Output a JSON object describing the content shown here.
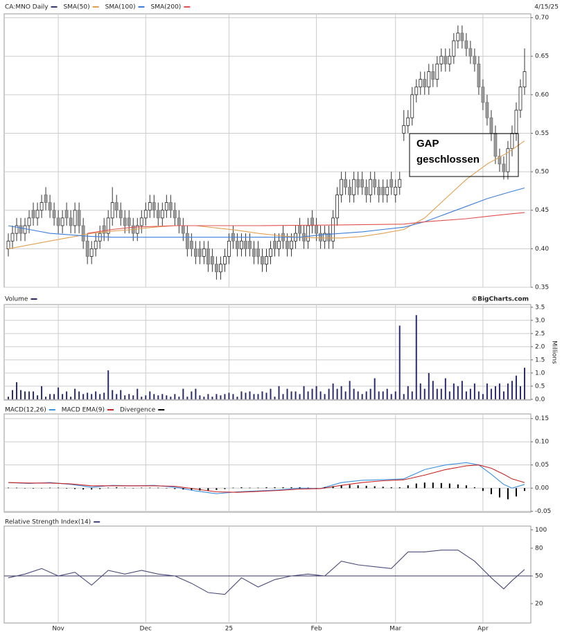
{
  "chart_data": [
    {
      "type": "candlestick",
      "name": "CA:MNO Daily",
      "color": "#333a6e",
      "date": "4/15/25",
      "up_color": "#ffffff",
      "down_color": "#9a9a9a",
      "grid": true,
      "ylim": [
        0.35,
        0.705
      ],
      "yticks": [
        0.35,
        {
          "value": 0.4,
          "label": "0.40"
        },
        0.45,
        {
          "value": 0.5,
          "label": "0.50"
        },
        0.55,
        {
          "value": 0.6,
          "label": "0.60"
        },
        0.65,
        {
          "value": 0.7,
          "label": "0.70"
        }
      ],
      "annotation": [
        "GAP",
        "geschlossen"
      ],
      "open": [
        0.4,
        0.41,
        0.42,
        0.43,
        0.42,
        0.43,
        0.45,
        0.44,
        0.45,
        0.47,
        0.46,
        0.45,
        0.44,
        0.43,
        0.45,
        0.44,
        0.43,
        0.45,
        0.43,
        0.41,
        0.39,
        0.4,
        0.41,
        0.43,
        0.42,
        0.44,
        0.46,
        0.45,
        0.44,
        0.44,
        0.43,
        0.42,
        0.43,
        0.44,
        0.45,
        0.46,
        0.45,
        0.44,
        0.45,
        0.46,
        0.45,
        0.44,
        0.43,
        0.42,
        0.41,
        0.4,
        0.4,
        0.39,
        0.4,
        0.39,
        0.38,
        0.37,
        0.38,
        0.39,
        0.42,
        0.41,
        0.4,
        0.41,
        0.41,
        0.4,
        0.4,
        0.39,
        0.38,
        0.39,
        0.41,
        0.4,
        0.42,
        0.41,
        0.4,
        0.41,
        0.43,
        0.42,
        0.41,
        0.44,
        0.43,
        0.42,
        0.41,
        0.42,
        0.41,
        0.44,
        0.47,
        0.49,
        0.48,
        0.47,
        0.49,
        0.49,
        0.48,
        0.47,
        0.49,
        0.48,
        0.48,
        0.47,
        0.49,
        0.47,
        0.48,
        0.55,
        0.56,
        0.57,
        0.6,
        0.61,
        0.62,
        0.61,
        0.63,
        0.62,
        0.64,
        0.65,
        0.64,
        0.65,
        0.67,
        0.68,
        0.67,
        0.66,
        0.65,
        0.64,
        0.61,
        0.59,
        0.57,
        0.55,
        0.52,
        0.51,
        0.5,
        0.53,
        0.55,
        0.58,
        0.61
      ],
      "high": [
        0.42,
        0.43,
        0.44,
        0.44,
        0.44,
        0.45,
        0.46,
        0.46,
        0.47,
        0.48,
        0.47,
        0.46,
        0.45,
        0.45,
        0.46,
        0.45,
        0.46,
        0.46,
        0.44,
        0.42,
        0.41,
        0.42,
        0.43,
        0.44,
        0.45,
        0.48,
        0.47,
        0.46,
        0.45,
        0.45,
        0.44,
        0.44,
        0.45,
        0.46,
        0.47,
        0.47,
        0.46,
        0.46,
        0.47,
        0.47,
        0.46,
        0.45,
        0.44,
        0.43,
        0.42,
        0.41,
        0.41,
        0.41,
        0.41,
        0.4,
        0.39,
        0.39,
        0.4,
        0.42,
        0.43,
        0.42,
        0.42,
        0.42,
        0.42,
        0.41,
        0.41,
        0.4,
        0.4,
        0.41,
        0.42,
        0.42,
        0.43,
        0.42,
        0.42,
        0.43,
        0.44,
        0.43,
        0.44,
        0.45,
        0.44,
        0.43,
        0.43,
        0.43,
        0.45,
        0.48,
        0.5,
        0.5,
        0.49,
        0.5,
        0.5,
        0.5,
        0.49,
        0.5,
        0.5,
        0.49,
        0.49,
        0.49,
        0.5,
        0.49,
        0.5,
        0.58,
        0.58,
        0.61,
        0.62,
        0.63,
        0.63,
        0.64,
        0.64,
        0.65,
        0.66,
        0.66,
        0.66,
        0.68,
        0.69,
        0.69,
        0.68,
        0.67,
        0.66,
        0.65,
        0.62,
        0.6,
        0.58,
        0.56,
        0.53,
        0.52,
        0.54,
        0.56,
        0.59,
        0.62,
        0.66
      ],
      "low": [
        0.39,
        0.4,
        0.41,
        0.41,
        0.41,
        0.42,
        0.43,
        0.43,
        0.44,
        0.45,
        0.44,
        0.43,
        0.42,
        0.42,
        0.43,
        0.42,
        0.42,
        0.42,
        0.4,
        0.38,
        0.38,
        0.39,
        0.4,
        0.41,
        0.41,
        0.43,
        0.44,
        0.43,
        0.42,
        0.42,
        0.41,
        0.41,
        0.42,
        0.43,
        0.44,
        0.44,
        0.43,
        0.43,
        0.44,
        0.44,
        0.43,
        0.42,
        0.41,
        0.39,
        0.39,
        0.38,
        0.38,
        0.38,
        0.37,
        0.37,
        0.36,
        0.36,
        0.37,
        0.38,
        0.4,
        0.39,
        0.39,
        0.39,
        0.39,
        0.38,
        0.38,
        0.37,
        0.37,
        0.38,
        0.39,
        0.39,
        0.4,
        0.39,
        0.39,
        0.4,
        0.41,
        0.4,
        0.4,
        0.42,
        0.41,
        0.4,
        0.4,
        0.4,
        0.4,
        0.43,
        0.46,
        0.47,
        0.46,
        0.46,
        0.47,
        0.47,
        0.46,
        0.46,
        0.47,
        0.46,
        0.46,
        0.46,
        0.47,
        0.46,
        0.47,
        0.54,
        0.55,
        0.56,
        0.59,
        0.6,
        0.6,
        0.6,
        0.61,
        0.61,
        0.63,
        0.63,
        0.63,
        0.64,
        0.66,
        0.66,
        0.65,
        0.64,
        0.63,
        0.6,
        0.58,
        0.56,
        0.54,
        0.51,
        0.5,
        0.49,
        0.49,
        0.52,
        0.54,
        0.57,
        0.6
      ],
      "close": [
        0.41,
        0.42,
        0.43,
        0.42,
        0.43,
        0.44,
        0.44,
        0.45,
        0.46,
        0.46,
        0.45,
        0.44,
        0.43,
        0.44,
        0.44,
        0.43,
        0.45,
        0.43,
        0.41,
        0.39,
        0.4,
        0.41,
        0.42,
        0.42,
        0.44,
        0.46,
        0.45,
        0.44,
        0.43,
        0.43,
        0.42,
        0.43,
        0.44,
        0.45,
        0.46,
        0.45,
        0.44,
        0.45,
        0.46,
        0.45,
        0.44,
        0.43,
        0.42,
        0.4,
        0.4,
        0.39,
        0.39,
        0.4,
        0.38,
        0.38,
        0.37,
        0.38,
        0.39,
        0.41,
        0.41,
        0.4,
        0.41,
        0.4,
        0.4,
        0.39,
        0.39,
        0.38,
        0.39,
        0.4,
        0.4,
        0.41,
        0.41,
        0.4,
        0.41,
        0.42,
        0.42,
        0.41,
        0.43,
        0.43,
        0.42,
        0.41,
        0.42,
        0.41,
        0.44,
        0.47,
        0.49,
        0.48,
        0.47,
        0.49,
        0.48,
        0.48,
        0.47,
        0.49,
        0.48,
        0.47,
        0.47,
        0.48,
        0.48,
        0.48,
        0.49,
        0.56,
        0.57,
        0.6,
        0.61,
        0.62,
        0.61,
        0.63,
        0.62,
        0.64,
        0.65,
        0.64,
        0.65,
        0.67,
        0.68,
        0.67,
        0.66,
        0.65,
        0.64,
        0.61,
        0.59,
        0.57,
        0.55,
        0.52,
        0.51,
        0.5,
        0.53,
        0.55,
        0.58,
        0.61,
        0.63
      ],
      "series": [
        {
          "name": "SMA(50)",
          "color": "#e0a050",
          "x": [
            0,
            5,
            10,
            15,
            20,
            25,
            30,
            35,
            40,
            45,
            50,
            55,
            60,
            65,
            70,
            75,
            80,
            85,
            90,
            95,
            100,
            105,
            110,
            115,
            120,
            124
          ],
          "values": [
            0.4,
            0.405,
            0.41,
            0.415,
            0.42,
            0.423,
            0.425,
            0.428,
            0.43,
            0.43,
            0.427,
            0.424,
            0.42,
            0.417,
            0.415,
            0.414,
            0.414,
            0.416,
            0.42,
            0.425,
            0.44,
            0.465,
            0.49,
            0.51,
            0.525,
            0.54
          ]
        },
        {
          "name": "SMA(100)",
          "color": "#3b7ddd",
          "x": [
            0,
            5,
            10,
            15,
            20,
            25,
            30,
            35,
            40,
            45,
            50,
            55,
            60,
            65,
            70,
            75,
            80,
            85,
            90,
            95,
            100,
            105,
            110,
            115,
            120,
            124
          ],
          "values": [
            0.43,
            0.425,
            0.42,
            0.418,
            0.416,
            0.415,
            0.415,
            0.415,
            0.415,
            0.415,
            0.415,
            0.415,
            0.415,
            0.415,
            0.415,
            0.418,
            0.42,
            0.422,
            0.425,
            0.428,
            0.435,
            0.445,
            0.455,
            0.465,
            0.473,
            0.479
          ]
        },
        {
          "name": "SMA(200)",
          "color": "#e05050",
          "x": [
            19,
            25,
            30,
            40,
            60,
            80,
            95,
            100,
            110,
            115,
            120,
            124
          ],
          "values": [
            0.42,
            0.425,
            0.428,
            0.43,
            0.43,
            0.431,
            0.432,
            0.435,
            0.439,
            0.442,
            0.445,
            0.447
          ]
        }
      ]
    },
    {
      "type": "bar",
      "name": "Volume",
      "color": "#2b2b6b",
      "credit": "©BigCharts.com",
      "ylabel": "Millions",
      "grid": true,
      "ylim": [
        -0.03,
        3.6
      ],
      "yticks": [
        {
          "value": 0,
          "label": "0.0"
        },
        0.5,
        {
          "value": 1,
          "label": "1.0"
        },
        1.5,
        {
          "value": 2,
          "label": "2.0"
        },
        2.5,
        {
          "value": 3,
          "label": "3.0"
        },
        3.5
      ],
      "values": [
        0.1,
        0.35,
        0.65,
        0.35,
        0.3,
        0.3,
        0.3,
        0.15,
        0.5,
        0.1,
        0.2,
        0.2,
        0.45,
        0.2,
        0.3,
        0.1,
        0.4,
        0.3,
        0.2,
        0.25,
        0.2,
        0.3,
        0.2,
        0.25,
        1.1,
        0.35,
        0.2,
        0.35,
        0.15,
        0.2,
        0.15,
        0.4,
        0.1,
        0.15,
        0.3,
        0.2,
        0.15,
        0.2,
        0.15,
        0.1,
        0.2,
        0.1,
        0.4,
        0.1,
        0.3,
        0.4,
        0.15,
        0.1,
        0.2,
        0.1,
        0.2,
        0.15,
        0.2,
        0.25,
        0.2,
        0.1,
        0.3,
        0.25,
        0.3,
        0.2,
        0.2,
        0.3,
        0.25,
        0.4,
        0.1,
        0.5,
        0.2,
        0.4,
        0.3,
        0.3,
        0.2,
        0.5,
        0.3,
        0.4,
        0.5,
        0.3,
        0.2,
        0.4,
        0.6,
        0.4,
        0.5,
        0.3,
        0.7,
        0.4,
        0.3,
        0.2,
        0.3,
        0.4,
        0.8,
        0.3,
        0.3,
        0.4,
        0.2,
        0.3,
        2.8,
        0.2,
        0.5,
        0.3,
        3.2,
        0.6,
        0.4,
        1.0,
        0.7,
        0.4,
        0.4,
        0.8,
        0.3,
        0.6,
        0.5,
        0.7,
        0.3,
        0.4,
        0.6,
        0.3,
        0.2,
        0.6,
        0.4,
        0.5,
        0.6,
        0.3,
        0.6,
        0.7,
        0.9,
        0.5,
        1.2
      ]
    },
    {
      "type": "line",
      "grid": true,
      "ylim": [
        -0.052,
        0.16
      ],
      "yticks": [
        -0.05,
        {
          "value": 0,
          "label": "0.00"
        },
        0.05,
        {
          "value": 0.1,
          "label": "0.10"
        },
        0.15
      ],
      "series": [
        {
          "name": "MACD(12,26)",
          "color": "#3b8fe0",
          "x": [
            0,
            5,
            10,
            15,
            20,
            25,
            30,
            35,
            40,
            45,
            50,
            55,
            60,
            65,
            70,
            75,
            80,
            85,
            90,
            95,
            100,
            105,
            110,
            113,
            116,
            119,
            121,
            124
          ],
          "values": [
            0.012,
            0.01,
            0.012,
            0.008,
            0.002,
            0.006,
            0.005,
            0.006,
            0.002,
            -0.006,
            -0.012,
            -0.008,
            -0.006,
            -0.004,
            0.0,
            -0.001,
            0.012,
            0.017,
            0.018,
            0.02,
            0.04,
            0.05,
            0.055,
            0.05,
            0.03,
            0.008,
            0.0,
            0.008
          ]
        },
        {
          "name": "MACD EMA(9)",
          "color": "#cc2222",
          "x": [
            0,
            5,
            10,
            15,
            20,
            25,
            30,
            35,
            40,
            45,
            50,
            55,
            60,
            65,
            70,
            75,
            80,
            85,
            90,
            95,
            100,
            105,
            110,
            113,
            116,
            119,
            121,
            124
          ],
          "values": [
            0.012,
            0.011,
            0.011,
            0.009,
            0.005,
            0.005,
            0.005,
            0.005,
            0.004,
            -0.002,
            -0.008,
            -0.009,
            -0.007,
            -0.005,
            -0.002,
            -0.001,
            0.006,
            0.012,
            0.016,
            0.018,
            0.028,
            0.04,
            0.048,
            0.05,
            0.043,
            0.03,
            0.02,
            0.012
          ]
        },
        {
          "name": "Divergence",
          "color": "#000000",
          "kind": "bar",
          "x": [
            0,
            2,
            4,
            6,
            8,
            10,
            12,
            14,
            16,
            18,
            20,
            22,
            24,
            26,
            28,
            30,
            32,
            34,
            36,
            38,
            40,
            42,
            44,
            46,
            48,
            50,
            52,
            54,
            56,
            58,
            60,
            62,
            64,
            66,
            68,
            70,
            72,
            74,
            76,
            78,
            80,
            82,
            84,
            86,
            88,
            90,
            92,
            94,
            96,
            98,
            100,
            102,
            104,
            106,
            108,
            110,
            112,
            114,
            116,
            118,
            120,
            122,
            124
          ],
          "values": [
            0.001,
            0.001,
            0.0,
            -0.001,
            0.0,
            0.001,
            0.001,
            -0.001,
            -0.002,
            -0.003,
            -0.003,
            -0.002,
            0.001,
            0.002,
            0.001,
            0.0,
            0.001,
            0.001,
            0.001,
            0.0,
            -0.002,
            -0.003,
            -0.004,
            -0.005,
            -0.005,
            -0.004,
            -0.002,
            0.001,
            0.002,
            0.001,
            0.001,
            0.002,
            0.002,
            0.002,
            0.002,
            0.002,
            0.001,
            0.0,
            0.002,
            0.004,
            0.006,
            0.007,
            0.006,
            0.005,
            0.004,
            0.003,
            0.002,
            0.002,
            0.006,
            0.01,
            0.012,
            0.012,
            0.011,
            0.01,
            0.008,
            0.006,
            0.002,
            -0.006,
            -0.013,
            -0.02,
            -0.024,
            -0.018,
            -0.006
          ]
        }
      ]
    },
    {
      "type": "line",
      "grid": false,
      "ylim": [
        -1,
        104
      ],
      "reference": 50,
      "yticks": [
        20,
        50,
        80,
        100
      ],
      "xlim": [
        -1,
        125.5
      ],
      "xticks": [
        {
          "value": 12,
          "label": "Nov"
        },
        {
          "value": 33,
          "label": "Dec"
        },
        {
          "value": 53,
          "label": "25"
        },
        {
          "value": 74,
          "label": "Feb"
        },
        {
          "value": 93,
          "label": "Mar"
        },
        {
          "value": 114,
          "label": "Apr"
        }
      ],
      "series": [
        {
          "name": "Relative Strength Index(14)",
          "color": "#4a4a7a",
          "x": [
            0,
            4,
            8,
            12,
            16,
            20,
            24,
            28,
            32,
            36,
            40,
            44,
            48,
            52,
            56,
            60,
            64,
            68,
            72,
            76,
            80,
            84,
            88,
            92,
            96,
            100,
            104,
            108,
            112,
            116,
            119,
            121,
            124
          ],
          "values": [
            48,
            52,
            58,
            50,
            54,
            40,
            56,
            52,
            56,
            52,
            50,
            42,
            32,
            30,
            48,
            38,
            46,
            50,
            52,
            50,
            66,
            62,
            60,
            58,
            76,
            76,
            78,
            78,
            66,
            48,
            36,
            45,
            57
          ]
        }
      ]
    }
  ]
}
